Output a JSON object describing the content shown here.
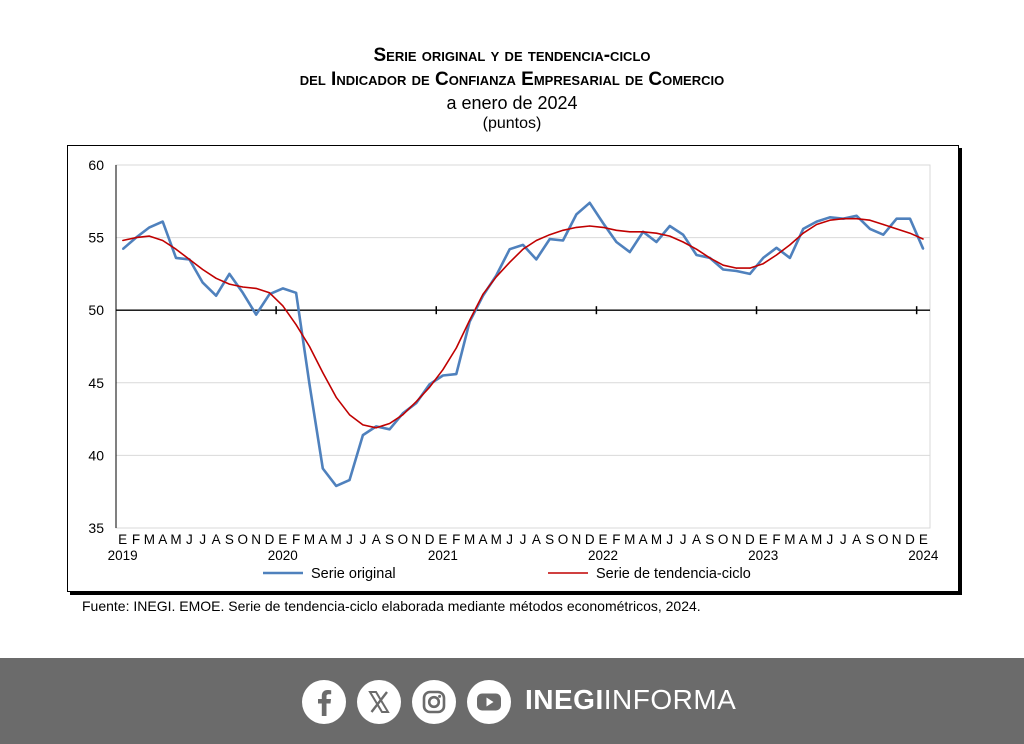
{
  "header": {
    "title_line1": "Serie original y de tendencia-ciclo",
    "title_line2": "del Indicador de Confianza Empresarial de Comercio",
    "subtitle": "a enero de 2024",
    "units": "(puntos)"
  },
  "chart_data": {
    "type": "line",
    "y_ticks": [
      "60",
      "55",
      "50",
      "45",
      "40",
      "35"
    ],
    "ylim": [
      35,
      60
    ],
    "month_letters": [
      "E",
      "F",
      "M",
      "A",
      "M",
      "J",
      "J",
      "A",
      "S",
      "O",
      "N",
      "D"
    ],
    "years": [
      "2019",
      "2020",
      "2021",
      "2022",
      "2023",
      "2024"
    ],
    "grid": true,
    "legend_position": "bottom",
    "series": [
      {
        "name": "Serie original",
        "color": "#4f81bd",
        "values": [
          54.2,
          55.0,
          55.7,
          56.1,
          53.6,
          53.5,
          51.9,
          51.0,
          52.5,
          51.2,
          49.7,
          51.1,
          51.5,
          51.2,
          44.9,
          39.1,
          37.9,
          38.3,
          41.4,
          42.0,
          41.8,
          42.9,
          43.6,
          44.9,
          45.5,
          45.6,
          49.2,
          51.0,
          52.4,
          54.2,
          54.5,
          53.5,
          54.9,
          54.8,
          56.6,
          57.4,
          56.0,
          54.7,
          54.0,
          55.4,
          54.7,
          55.8,
          55.2,
          53.8,
          53.6,
          52.8,
          52.7,
          52.5,
          53.6,
          54.3,
          53.6,
          55.6,
          56.1,
          56.4,
          56.3,
          56.5,
          55.6,
          55.2,
          56.3,
          56.3,
          54.2
        ]
      },
      {
        "name": "Serie de tendencia-ciclo",
        "color": "#c00000",
        "values": [
          54.8,
          55.0,
          55.1,
          54.8,
          54.2,
          53.5,
          52.8,
          52.2,
          51.8,
          51.6,
          51.5,
          51.2,
          50.3,
          49.0,
          47.5,
          45.7,
          44.0,
          42.8,
          42.1,
          41.9,
          42.2,
          42.8,
          43.7,
          44.7,
          45.9,
          47.4,
          49.3,
          51.1,
          52.3,
          53.3,
          54.2,
          54.8,
          55.2,
          55.5,
          55.7,
          55.8,
          55.7,
          55.5,
          55.4,
          55.4,
          55.3,
          55.1,
          54.7,
          54.2,
          53.6,
          53.1,
          52.9,
          52.9,
          53.2,
          53.8,
          54.5,
          55.3,
          55.9,
          56.2,
          56.3,
          56.3,
          56.2,
          55.9,
          55.6,
          55.3,
          54.9
        ]
      }
    ]
  },
  "source": {
    "prefix": "Fuente: ",
    "org": "INEGI. EMOE",
    "rest": ". Serie de tendencia-ciclo elaborada mediante métodos econométricos, 2024."
  },
  "footer": {
    "brand_bold": "INEGI",
    "brand_light": "INFORMA",
    "icons": [
      "facebook-icon",
      "x-icon",
      "instagram-icon",
      "youtube-icon"
    ],
    "background": "#6b6b6b"
  }
}
